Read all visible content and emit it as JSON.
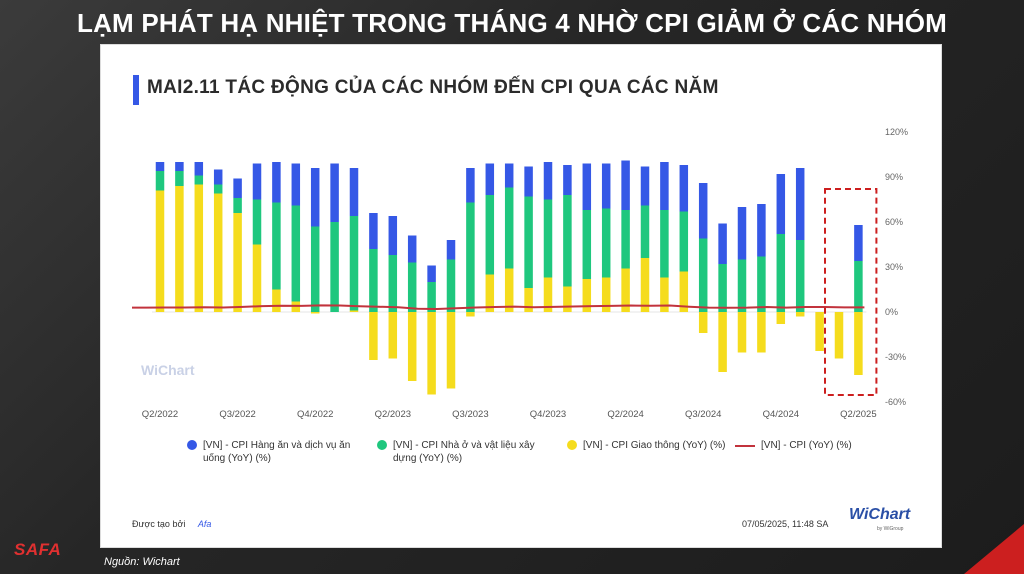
{
  "slide": {
    "title": "LẠM PHÁT HẠ NHIỆT TRONG THÁNG 4 NHỜ CPI GIẢM Ở CÁC NHÓM",
    "source": "Nguồn: Wichart",
    "brand": "SAFA"
  },
  "card": {
    "title": "MAI2.11 TÁC ĐỘNG CỦA CÁC NHÓM ĐẾN CPI QUA CÁC NĂM",
    "watermark": "WiChart",
    "footer_created": "Được tạo bởi",
    "footer_author": "Afa",
    "timestamp": "07/05/2025, 11:48 SA",
    "logo": "WiChart",
    "logo_sub": "by WiGroup"
  },
  "colors": {
    "food": "#3558e6",
    "housing": "#1fc77e",
    "transport": "#f5dc1d",
    "cpi": "#c2333c",
    "highlight": "#cc1f1f",
    "accent": "#3558e6"
  },
  "chart_data": {
    "type": "bar",
    "stacked": true,
    "ylim": [
      -60,
      120
    ],
    "y_ticks": [
      "120%",
      "90%",
      "60%",
      "30%",
      "0%",
      "-30%",
      "-60%"
    ],
    "y_tick_values": [
      120,
      90,
      60,
      30,
      0,
      -30,
      -60
    ],
    "x_tick_labels": [
      "Q2/2022",
      "Q3/2022",
      "Q4/2022",
      "Q2/2023",
      "Q3/2023",
      "Q4/2023",
      "Q2/2024",
      "Q3/2024",
      "Q4/2024",
      "Q2/2025"
    ],
    "x_tick_index": [
      0,
      4,
      8,
      12,
      16,
      20,
      24,
      28,
      32,
      36
    ],
    "n_bars": 37,
    "series": [
      {
        "name": "[VN] - CPI Giao thông (YoY) (%)",
        "key": "transport",
        "values": [
          81,
          84,
          85,
          79,
          66,
          45,
          15,
          7,
          -1,
          0,
          1,
          -32,
          -31,
          -46,
          -55,
          -51,
          -3,
          25,
          29,
          16,
          23,
          17,
          22,
          23,
          29,
          36,
          23,
          27,
          -14,
          -40,
          -27,
          -27,
          -8,
          -3,
          -26,
          -31,
          -42
        ]
      },
      {
        "name": "[VN] - CPI Nhà ở và vật liệu xây dựng (YoY) (%)",
        "key": "housing",
        "values": [
          13,
          10,
          6,
          6,
          10,
          30,
          58,
          64,
          57,
          60,
          63,
          42,
          38,
          33,
          20,
          35,
          73,
          53,
          54,
          61,
          52,
          61,
          46,
          46,
          39,
          35,
          45,
          40,
          49,
          32,
          35,
          37,
          52,
          48,
          0,
          0,
          34
        ]
      },
      {
        "name": "[VN] - CPI Hàng ăn và dịch vụ ăn uống (YoY) (%)",
        "key": "food",
        "values": [
          6,
          6,
          9,
          10,
          13,
          24,
          27,
          28,
          39,
          39,
          32,
          24,
          26,
          18,
          11,
          13,
          23,
          21,
          16,
          20,
          25,
          20,
          31,
          30,
          33,
          26,
          32,
          31,
          37,
          27,
          35,
          35,
          40,
          48,
          0,
          0,
          24
        ]
      },
      {
        "name": "[VN] - CPI (YoY) (%)",
        "key": "cpi",
        "type": "line",
        "values": [
          2.9,
          3.0,
          3.0,
          3.2,
          3.0,
          3.4,
          3.9,
          4.2,
          4.1,
          4.4,
          4.3,
          3.8,
          3.5,
          3.2,
          2.2,
          2.0,
          2.5,
          3.0,
          3.3,
          3.6,
          3.2,
          3.4,
          3.7,
          3.9,
          4.1,
          4.3,
          4.2,
          4.3,
          3.5,
          2.9,
          2.8,
          2.9,
          3.3,
          2.9,
          3.3,
          3.3,
          3.1
        ]
      }
    ],
    "legend_position": "bottom",
    "grid": false,
    "highlight_last_bars": 2
  }
}
